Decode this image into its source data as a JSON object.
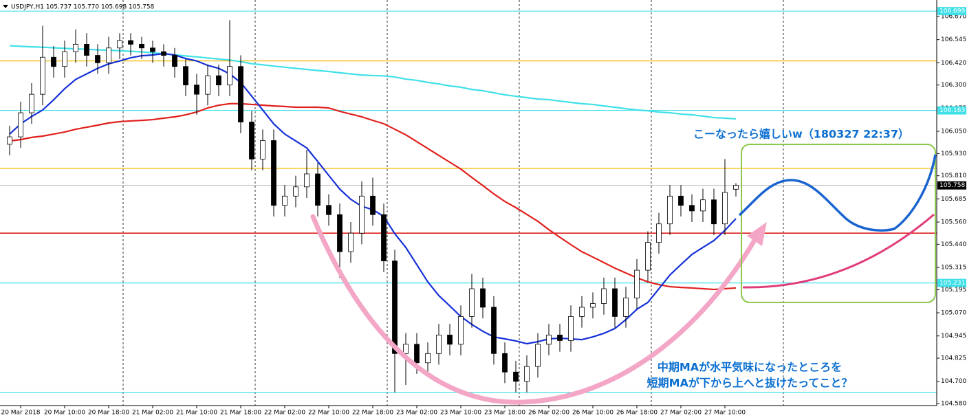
{
  "chart_data": {
    "type": "candlestick",
    "title": "USDJPY,H1  105.737 105.770 105.698 105.758",
    "categories": [
      null,
      "20 Mar 2018",
      null,
      null,
      null,
      "20 Mar 10:00",
      null,
      null,
      null,
      "20 Mar 18:00",
      null,
      null,
      null,
      "21 Mar 02:00",
      null,
      null,
      null,
      "21 Mar 10:00",
      null,
      null,
      null,
      "21 Mar 18:00",
      null,
      null,
      null,
      "22 Mar 02:00",
      null,
      null,
      null,
      "22 Mar 10:00",
      null,
      null,
      null,
      "22 Mar 18:00",
      null,
      null,
      null,
      "23 Mar 02:00",
      null,
      null,
      null,
      "23 Mar 10:00",
      null,
      null,
      null,
      "23 Mar 18:00",
      null,
      null,
      null,
      "26 Mar 02:00",
      null,
      null,
      null,
      "26 Mar 10:00",
      null,
      null,
      null,
      "26 Mar 18:00",
      null,
      null,
      null,
      "27 Mar 02:00",
      null,
      null,
      null,
      "27 Mar 10:00",
      null
    ],
    "open": [
      105.98,
      106.02,
      106.15,
      106.25,
      106.45,
      106.4,
      106.48,
      106.52,
      106.46,
      106.42,
      106.5,
      106.54,
      106.52,
      106.5,
      106.48,
      106.46,
      106.4,
      106.3,
      106.25,
      106.35,
      106.3,
      106.4,
      106.1,
      105.9,
      106.0,
      105.65,
      105.7,
      105.75,
      105.82,
      105.65,
      105.6,
      105.4,
      105.5,
      105.7,
      105.6,
      105.35,
      104.85,
      104.9,
      104.8,
      104.85,
      104.95,
      104.9,
      105.05,
      105.2,
      105.1,
      104.85,
      104.75,
      104.7,
      104.78,
      104.9,
      104.95,
      104.92,
      105.05,
      105.1,
      105.12,
      105.2,
      105.05,
      105.15,
      105.3,
      105.45,
      105.55,
      105.7,
      105.65,
      105.62,
      105.68,
      105.55,
      105.737
    ],
    "high": [
      106.08,
      106.21,
      106.31,
      106.62,
      106.51,
      106.54,
      106.6,
      106.58,
      106.52,
      106.56,
      106.58,
      106.58,
      106.56,
      106.54,
      106.52,
      106.5,
      106.44,
      106.36,
      106.41,
      106.41,
      106.65,
      106.46,
      106.16,
      106.06,
      106.06,
      105.76,
      105.81,
      105.95,
      105.88,
      105.71,
      105.66,
      105.56,
      105.78,
      105.8,
      105.66,
      105.41,
      104.96,
      104.96,
      104.91,
      105.01,
      105.01,
      105.11,
      105.28,
      105.26,
      105.16,
      104.91,
      104.81,
      104.84,
      104.96,
      105.01,
      105.01,
      105.11,
      105.16,
      105.18,
      105.26,
      105.26,
      105.21,
      105.36,
      105.51,
      105.61,
      105.76,
      105.76,
      105.71,
      105.74,
      105.74,
      105.9,
      105.77
    ],
    "low": [
      105.92,
      105.96,
      106.09,
      106.19,
      106.34,
      106.34,
      106.42,
      106.4,
      106.36,
      106.36,
      106.44,
      106.46,
      106.44,
      106.42,
      106.4,
      106.34,
      106.24,
      106.14,
      106.19,
      106.24,
      106.24,
      106.04,
      105.84,
      105.84,
      105.59,
      105.59,
      105.64,
      105.69,
      105.59,
      105.54,
      105.26,
      105.34,
      105.44,
      105.54,
      105.29,
      104.64,
      104.68,
      104.74,
      104.74,
      104.79,
      104.84,
      104.84,
      104.99,
      105.04,
      104.79,
      104.69,
      104.64,
      104.64,
      104.72,
      104.84,
      104.86,
      104.86,
      104.99,
      105.04,
      105.06,
      104.99,
      104.99,
      105.09,
      105.24,
      105.39,
      105.49,
      105.59,
      105.56,
      105.56,
      105.49,
      105.49,
      105.698
    ],
    "close": [
      106.02,
      106.15,
      106.25,
      106.45,
      106.4,
      106.48,
      106.52,
      106.46,
      106.42,
      106.5,
      106.54,
      106.52,
      106.5,
      106.48,
      106.46,
      106.4,
      106.3,
      106.25,
      106.35,
      106.3,
      106.4,
      106.1,
      105.9,
      106.0,
      105.65,
      105.7,
      105.75,
      105.82,
      105.65,
      105.6,
      105.4,
      105.5,
      105.7,
      105.6,
      105.35,
      104.85,
      104.9,
      104.8,
      104.85,
      104.95,
      104.9,
      105.05,
      105.2,
      105.1,
      104.85,
      104.75,
      104.7,
      104.78,
      104.9,
      104.95,
      104.92,
      105.05,
      105.1,
      105.12,
      105.2,
      105.05,
      105.15,
      105.3,
      105.45,
      105.55,
      105.7,
      105.65,
      105.62,
      105.68,
      105.55,
      105.72,
      105.758
    ],
    "lines": [
      {
        "color": "#40e0e8",
        "values": [
          106.512,
          106.509,
          106.506,
          106.504,
          106.501,
          106.498,
          106.495,
          106.493,
          106.49,
          106.488,
          106.485,
          106.482,
          106.479,
          106.474,
          106.468,
          106.463,
          106.457,
          106.452,
          106.446,
          106.44,
          106.435,
          106.426,
          106.415,
          106.409,
          106.402,
          106.396,
          106.39,
          106.384,
          106.378,
          106.373,
          106.366,
          106.36,
          106.354,
          106.351,
          106.349,
          106.343,
          106.332,
          106.325,
          106.314,
          106.306,
          106.295,
          106.288,
          106.276,
          106.269,
          106.258,
          106.247,
          106.239,
          106.232,
          106.224,
          106.221,
          106.213,
          106.206,
          106.199,
          106.195,
          106.187,
          106.18,
          106.172,
          106.165,
          106.161,
          106.154,
          106.15,
          106.143,
          106.139,
          106.132,
          106.124,
          106.121,
          106.117
        ]
      },
      {
        "color": "#e0201c",
        "values": [
          105.998,
          106.005,
          106.017,
          106.024,
          106.035,
          106.046,
          106.061,
          106.072,
          106.083,
          106.095,
          106.102,
          106.106,
          106.109,
          106.113,
          106.121,
          106.128,
          106.139,
          106.154,
          106.176,
          106.191,
          106.199,
          106.199,
          106.195,
          106.191,
          106.187,
          106.184,
          106.18,
          106.18,
          106.18,
          106.176,
          106.158,
          106.143,
          106.128,
          106.109,
          106.091,
          106.061,
          106.031,
          105.994,
          105.957,
          105.92,
          105.883,
          105.846,
          105.801,
          105.757,
          105.712,
          105.671,
          105.638,
          105.601,
          105.564,
          105.519,
          105.478,
          105.438,
          105.4,
          105.371,
          105.341,
          105.311,
          105.285,
          105.259,
          105.237,
          105.222,
          105.211,
          105.207,
          105.204,
          105.2,
          105.196,
          105.2,
          105.204
        ]
      },
      {
        "color": "#1530d8",
        "values": [
          106.035,
          106.09,
          106.13,
          106.165,
          106.22,
          106.28,
          106.33,
          106.36,
          106.39,
          106.414,
          106.43,
          106.447,
          106.458,
          106.462,
          106.47,
          106.462,
          106.443,
          106.43,
          106.406,
          106.39,
          106.36,
          106.313,
          106.24,
          106.165,
          106.09,
          106.035,
          105.998,
          105.96,
          105.887,
          105.812,
          105.738,
          105.683,
          105.645,
          105.627,
          105.59,
          105.497,
          105.423,
          105.33,
          105.237,
          105.163,
          105.107,
          105.05,
          105.007,
          104.97,
          104.94,
          104.929,
          104.918,
          104.903,
          104.914,
          104.929,
          104.933,
          104.929,
          104.925,
          104.94,
          104.959,
          104.985,
          105.033,
          105.089,
          105.126,
          105.2,
          105.274,
          105.33,
          105.385,
          105.423,
          105.46,
          105.515,
          105.578
        ]
      }
    ],
    "hlines": [
      {
        "value": 106.699,
        "color": "#40e0e8",
        "tag": true
      },
      {
        "value": 106.43,
        "color": "#f5b800",
        "tag": false
      },
      {
        "value": 106.163,
        "color": "#40e0e8",
        "tag": true
      },
      {
        "value": 105.85,
        "color": "#f5b800",
        "tag": false
      },
      {
        "value": 105.758,
        "color": "#c0c0c0",
        "tag": true
      },
      {
        "value": 105.5,
        "color": "#e0201c",
        "tag": false
      },
      {
        "value": 105.231,
        "color": "#40e0e8",
        "tag": true
      },
      {
        "value": 104.64,
        "color": "#40e0e8",
        "tag": false
      }
    ],
    "ylim": [
      104.569,
      106.759
    ],
    "yticks": [
      {
        "value": 106.67,
        "label": "106.670"
      },
      {
        "value": 106.545,
        "label": "106.545"
      },
      {
        "value": 106.42,
        "label": "106.420"
      },
      {
        "value": 106.3,
        "label": "106.300"
      },
      {
        "value": 106.175,
        "label": "106.175"
      },
      {
        "value": 106.05,
        "label": "106.050"
      },
      {
        "value": 105.93,
        "label": "105.930"
      },
      {
        "value": 105.81,
        "label": "105.810"
      },
      {
        "value": 105.685,
        "label": "105.685"
      },
      {
        "value": 105.56,
        "label": "105.560"
      },
      {
        "value": 105.44,
        "label": "105.440"
      },
      {
        "value": 105.315,
        "label": "105.315"
      },
      {
        "value": 105.195,
        "label": "105.195"
      },
      {
        "value": 105.07,
        "label": "105.070"
      },
      {
        "value": 104.945,
        "label": "104.945"
      },
      {
        "value": 104.825,
        "label": "104.825"
      },
      {
        "value": 104.7,
        "label": "104.700"
      },
      {
        "value": 104.58,
        "label": "104.580"
      }
    ],
    "annotations": [
      "こーなったら嬉しいw（180327  22:37）",
      "中期MAが水平気味になったところを",
      "短期MAが下から上へと抜けたってこと？"
    ]
  }
}
